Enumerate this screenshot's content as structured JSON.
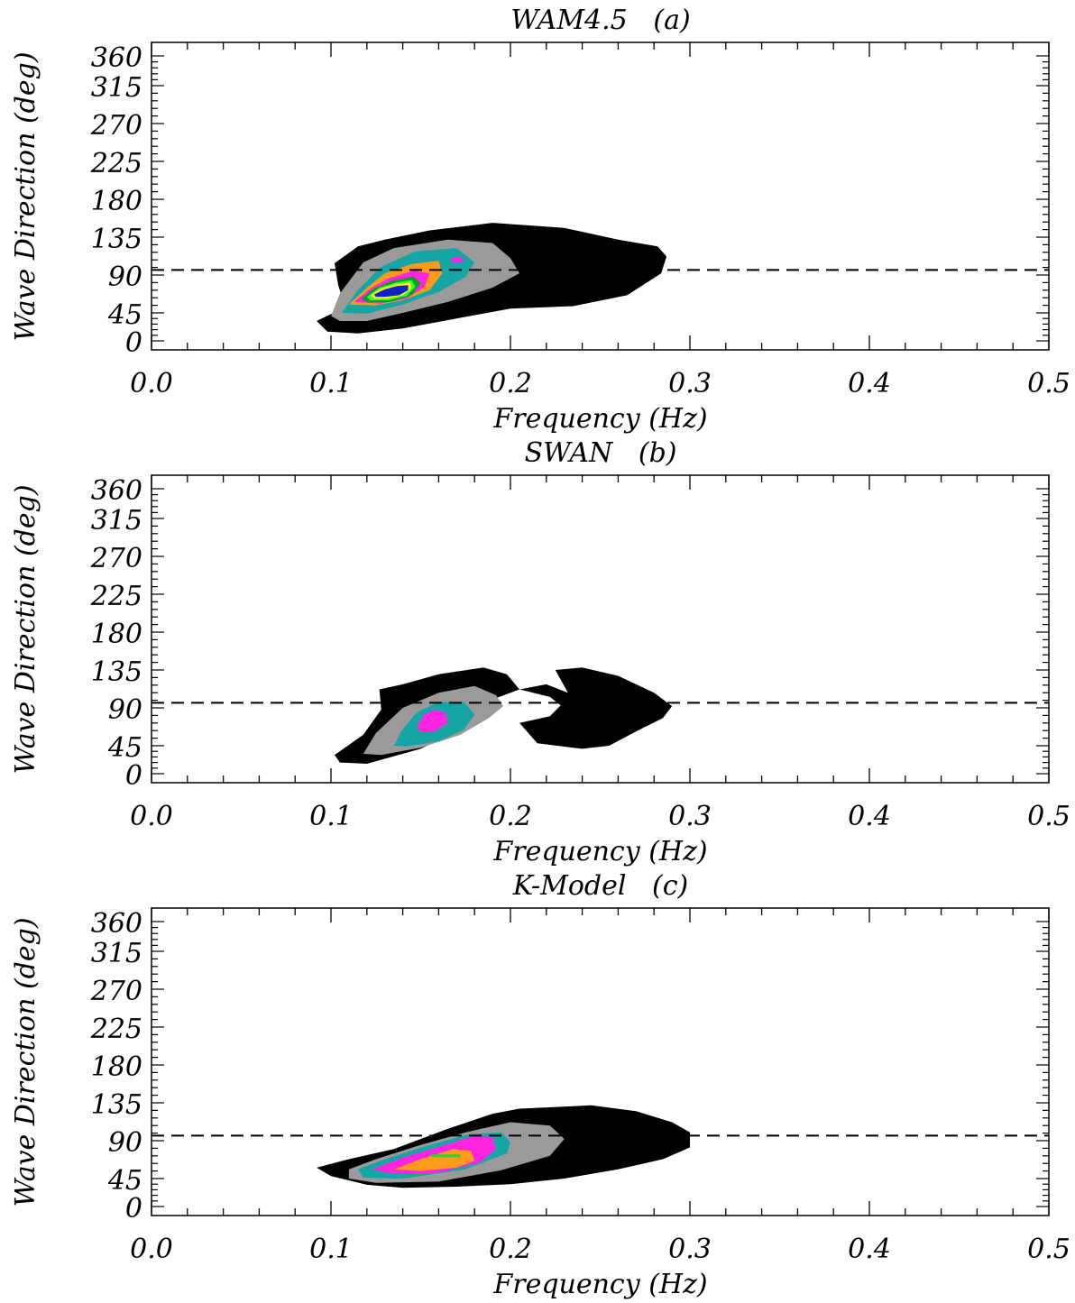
{
  "chart_data": [
    {
      "type": "contour",
      "title": "WAM4.5   (a)",
      "xlabel": "Frequency (Hz)",
      "ylabel": "Wave Direction (deg)",
      "xlim": [
        0.0,
        0.5
      ],
      "ylim": [
        0,
        360
      ],
      "xticks": [
        "0.0",
        "0.1",
        "0.2",
        "0.3",
        "0.4",
        "0.5"
      ],
      "yticks": [
        "0",
        "45",
        "90",
        "135",
        "180",
        "225",
        "270",
        "315",
        "360"
      ],
      "ytick_values": [
        0,
        45,
        90,
        135,
        180,
        225,
        270,
        315,
        360
      ],
      "reference_line": {
        "style": "dashed",
        "y": 96
      },
      "levels": [
        {
          "color": "#000000",
          "points": [
            [
              0.092,
              32
            ],
            [
              0.108,
              52
            ],
            [
              0.104,
              78
            ],
            [
              0.102,
              104
            ],
            [
              0.115,
              124
            ],
            [
              0.13,
              132
            ],
            [
              0.155,
              143
            ],
            [
              0.19,
              152
            ],
            [
              0.23,
              146
            ],
            [
              0.26,
              132
            ],
            [
              0.282,
              124
            ],
            [
              0.287,
              112
            ],
            [
              0.284,
              92
            ],
            [
              0.265,
              66
            ],
            [
              0.235,
              53
            ],
            [
              0.2,
              50
            ],
            [
              0.17,
              36
            ],
            [
              0.14,
              20
            ],
            [
              0.115,
              12
            ],
            [
              0.098,
              15
            ],
            [
              0.092,
              32
            ]
          ]
        },
        {
          "color": "#9a9a9a",
          "points": [
            [
              0.1,
              40
            ],
            [
              0.105,
              68
            ],
            [
              0.118,
              105
            ],
            [
              0.135,
              122
            ],
            [
              0.165,
              132
            ],
            [
              0.19,
              128
            ],
            [
              0.2,
              110
            ],
            [
              0.205,
              92
            ],
            [
              0.19,
              75
            ],
            [
              0.165,
              58
            ],
            [
              0.14,
              45
            ],
            [
              0.12,
              32
            ],
            [
              0.105,
              32
            ],
            [
              0.1,
              40
            ]
          ]
        },
        {
          "color": "#16a5a5",
          "points": [
            [
              0.106,
              45
            ],
            [
              0.115,
              72
            ],
            [
              0.128,
              100
            ],
            [
              0.147,
              118
            ],
            [
              0.17,
              122
            ],
            [
              0.18,
              105
            ],
            [
              0.175,
              88
            ],
            [
              0.16,
              70
            ],
            [
              0.14,
              55
            ],
            [
              0.12,
              44
            ],
            [
              0.106,
              45
            ]
          ]
        },
        {
          "color": "#ff9a1a",
          "points": [
            [
              0.11,
              55
            ],
            [
              0.12,
              75
            ],
            [
              0.13,
              92
            ],
            [
              0.145,
              103
            ],
            [
              0.16,
              107
            ],
            [
              0.162,
              92
            ],
            [
              0.155,
              72
            ],
            [
              0.14,
              60
            ],
            [
              0.125,
              54
            ],
            [
              0.11,
              55
            ]
          ]
        },
        {
          "color": "#ff24e2",
          "points": [
            [
              0.113,
              58
            ],
            [
              0.122,
              74
            ],
            [
              0.132,
              86
            ],
            [
              0.146,
              95
            ],
            [
              0.155,
              92
            ],
            [
              0.152,
              76
            ],
            [
              0.142,
              62
            ],
            [
              0.128,
              56
            ],
            [
              0.113,
              58
            ]
          ]
        },
        {
          "color": "#00a020",
          "points": [
            [
              0.117,
              62
            ],
            [
              0.124,
              74
            ],
            [
              0.134,
              83
            ],
            [
              0.146,
              88
            ],
            [
              0.15,
              80
            ],
            [
              0.145,
              66
            ],
            [
              0.133,
              58
            ],
            [
              0.12,
              58
            ],
            [
              0.117,
              62
            ]
          ]
        },
        {
          "color": "#33ff33",
          "points": [
            [
              0.12,
              64
            ],
            [
              0.127,
              75
            ],
            [
              0.136,
              81
            ],
            [
              0.145,
              84
            ],
            [
              0.147,
              76
            ],
            [
              0.142,
              65
            ],
            [
              0.132,
              60
            ],
            [
              0.122,
              60
            ],
            [
              0.12,
              64
            ]
          ]
        },
        {
          "color": "#ffff00",
          "points": [
            [
              0.122,
              66
            ],
            [
              0.128,
              74
            ],
            [
              0.136,
              79
            ],
            [
              0.144,
              81
            ],
            [
              0.145,
              74
            ],
            [
              0.14,
              66
            ],
            [
              0.131,
              62
            ],
            [
              0.124,
              62
            ],
            [
              0.122,
              66
            ]
          ]
        },
        {
          "color": "#1022c8",
          "points": [
            [
              0.124,
              67
            ],
            [
              0.13,
              73
            ],
            [
              0.137,
              77
            ],
            [
              0.143,
              78
            ],
            [
              0.143,
              72
            ],
            [
              0.138,
              66
            ],
            [
              0.13,
              64
            ],
            [
              0.125,
              64
            ],
            [
              0.124,
              67
            ]
          ]
        },
        {
          "color": "#ff24e2",
          "points": [
            [
              0.167,
              110
            ],
            [
              0.172,
              112
            ],
            [
              0.174,
              106
            ],
            [
              0.168,
              104
            ],
            [
              0.167,
              110
            ]
          ]
        }
      ]
    },
    {
      "type": "contour",
      "title": "SWAN   (b)",
      "xlabel": "Frequency (Hz)",
      "ylabel": "Wave Direction (deg)",
      "xlim": [
        0.0,
        0.5
      ],
      "ylim": [
        0,
        360
      ],
      "xticks": [
        "0.0",
        "0.1",
        "0.2",
        "0.3",
        "0.4",
        "0.5"
      ],
      "yticks": [
        "0",
        "45",
        "90",
        "135",
        "180",
        "225",
        "270",
        "315",
        "360"
      ],
      "ytick_values": [
        0,
        45,
        90,
        135,
        180,
        225,
        270,
        315,
        360
      ],
      "reference_line": {
        "style": "dashed",
        "y": 96
      },
      "levels": [
        {
          "color": "#000000",
          "points": [
            [
              0.102,
              30
            ],
            [
              0.118,
              58
            ],
            [
              0.128,
              88
            ],
            [
              0.127,
              112
            ],
            [
              0.14,
              118
            ],
            [
              0.16,
              130
            ],
            [
              0.185,
              138
            ],
            [
              0.198,
              130
            ],
            [
              0.205,
              112
            ],
            [
              0.222,
              103
            ],
            [
              0.228,
              93
            ],
            [
              0.222,
              80
            ],
            [
              0.205,
              72
            ],
            [
              0.21,
              60
            ],
            [
              0.215,
              48
            ],
            [
              0.24,
              40
            ],
            [
              0.255,
              45
            ],
            [
              0.27,
              62
            ],
            [
              0.285,
              78
            ],
            [
              0.29,
              92
            ],
            [
              0.28,
              108
            ],
            [
              0.26,
              128
            ],
            [
              0.24,
              138
            ],
            [
              0.225,
              135
            ],
            [
              0.232,
              108
            ],
            [
              0.22,
              118
            ],
            [
              0.205,
              112
            ],
            [
              0.19,
              100
            ],
            [
              0.175,
              68
            ],
            [
              0.15,
              40
            ],
            [
              0.12,
              16
            ],
            [
              0.105,
              18
            ],
            [
              0.102,
              30
            ]
          ]
        },
        {
          "color": "#9a9a9a",
          "points": [
            [
              0.118,
              32
            ],
            [
              0.125,
              60
            ],
            [
              0.14,
              90
            ],
            [
              0.16,
              108
            ],
            [
              0.18,
              116
            ],
            [
              0.192,
              105
            ],
            [
              0.196,
              92
            ],
            [
              0.188,
              78
            ],
            [
              0.172,
              58
            ],
            [
              0.15,
              42
            ],
            [
              0.128,
              30
            ],
            [
              0.118,
              32
            ]
          ]
        },
        {
          "color": "#16a5a5",
          "points": [
            [
              0.135,
              45
            ],
            [
              0.14,
              65
            ],
            [
              0.148,
              85
            ],
            [
              0.16,
              97
            ],
            [
              0.174,
              97
            ],
            [
              0.18,
              82
            ],
            [
              0.174,
              64
            ],
            [
              0.16,
              50
            ],
            [
              0.142,
              44
            ],
            [
              0.135,
              45
            ]
          ]
        },
        {
          "color": "#ff24e2",
          "points": [
            [
              0.148,
              68
            ],
            [
              0.152,
              82
            ],
            [
              0.158,
              88
            ],
            [
              0.164,
              84
            ],
            [
              0.165,
              72
            ],
            [
              0.158,
              62
            ],
            [
              0.15,
              62
            ],
            [
              0.148,
              68
            ]
          ]
        }
      ]
    },
    {
      "type": "contour",
      "title": "K-Model   (c)",
      "xlabel": "Frequency (Hz)",
      "ylabel": "Wave Direction (deg)",
      "xlim": [
        0.0,
        0.5
      ],
      "ylim": [
        0,
        360
      ],
      "xticks": [
        "0.0",
        "0.1",
        "0.2",
        "0.3",
        "0.4",
        "0.5"
      ],
      "yticks": [
        "0",
        "45",
        "90",
        "135",
        "180",
        "225",
        "270",
        "315",
        "360"
      ],
      "ytick_values": [
        0,
        45,
        90,
        135,
        180,
        225,
        270,
        315,
        360
      ],
      "reference_line": {
        "style": "dashed",
        "y": 96
      },
      "levels": [
        {
          "color": "#000000",
          "points": [
            [
              0.092,
              58
            ],
            [
              0.11,
              68
            ],
            [
              0.135,
              80
            ],
            [
              0.165,
              104
            ],
            [
              0.19,
              122
            ],
            [
              0.205,
              128
            ],
            [
              0.245,
              132
            ],
            [
              0.27,
              125
            ],
            [
              0.29,
              112
            ],
            [
              0.3,
              100
            ],
            [
              0.3,
              82
            ],
            [
              0.285,
              68
            ],
            [
              0.26,
              56
            ],
            [
              0.23,
              45
            ],
            [
              0.2,
              36
            ],
            [
              0.17,
              32
            ],
            [
              0.14,
              30
            ],
            [
              0.12,
              35
            ],
            [
              0.1,
              48
            ],
            [
              0.092,
              58
            ]
          ]
        },
        {
          "color": "#9a9a9a",
          "points": [
            [
              0.11,
              56
            ],
            [
              0.125,
              68
            ],
            [
              0.15,
              85
            ],
            [
              0.175,
              100
            ],
            [
              0.2,
              112
            ],
            [
              0.222,
              108
            ],
            [
              0.23,
              92
            ],
            [
              0.222,
              72
            ],
            [
              0.195,
              55
            ],
            [
              0.16,
              40
            ],
            [
              0.125,
              38
            ],
            [
              0.11,
              45
            ],
            [
              0.11,
              56
            ]
          ]
        },
        {
          "color": "#16a5a5",
          "points": [
            [
              0.115,
              56
            ],
            [
              0.13,
              68
            ],
            [
              0.155,
              85
            ],
            [
              0.178,
              98
            ],
            [
              0.195,
              100
            ],
            [
              0.2,
              88
            ],
            [
              0.198,
              75
            ],
            [
              0.175,
              56
            ],
            [
              0.14,
              45
            ],
            [
              0.118,
              46
            ],
            [
              0.115,
              56
            ]
          ]
        },
        {
          "color": "#ff24e2",
          "points": [
            [
              0.123,
              56
            ],
            [
              0.14,
              70
            ],
            [
              0.162,
              84
            ],
            [
              0.18,
              96
            ],
            [
              0.19,
              94
            ],
            [
              0.192,
              80
            ],
            [
              0.183,
              64
            ],
            [
              0.16,
              52
            ],
            [
              0.135,
              50
            ],
            [
              0.123,
              56
            ]
          ]
        },
        {
          "color": "#ff9a1a",
          "points": [
            [
              0.135,
              56
            ],
            [
              0.15,
              68
            ],
            [
              0.168,
              80
            ],
            [
              0.178,
              78
            ],
            [
              0.18,
              66
            ],
            [
              0.17,
              58
            ],
            [
              0.15,
              54
            ],
            [
              0.135,
              56
            ]
          ]
        },
        {
          "color": "#33cc33",
          "points": [
            [
              0.156,
              72
            ],
            [
              0.172,
              72
            ]
          ]
        }
      ]
    }
  ]
}
